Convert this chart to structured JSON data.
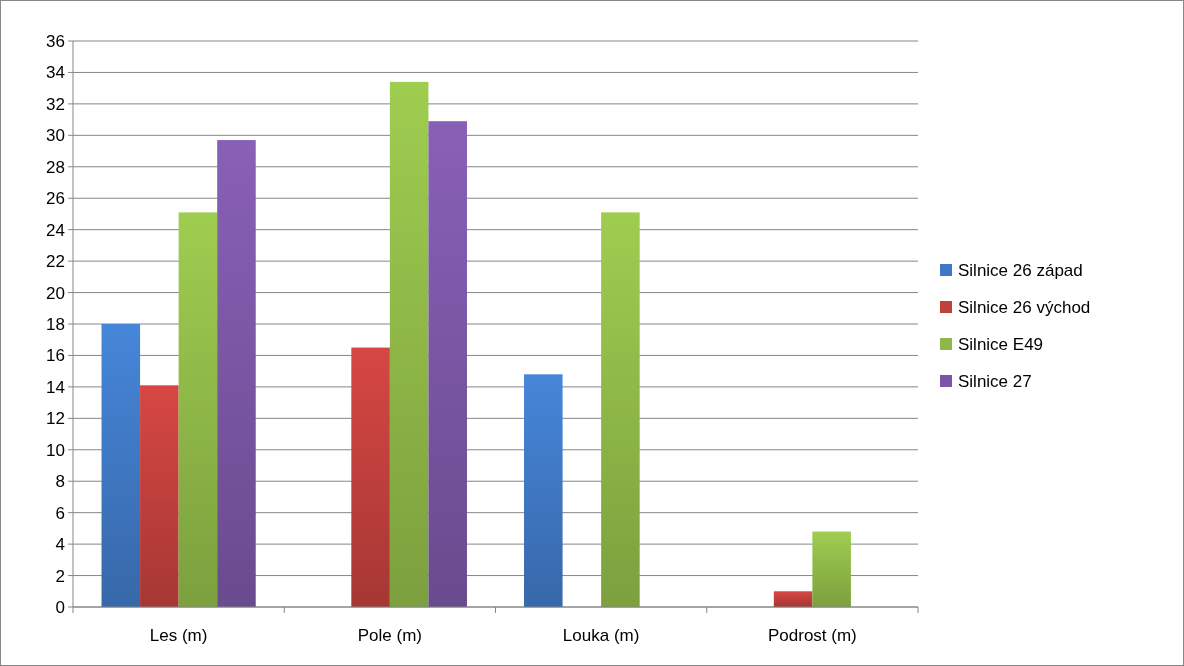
{
  "chart_data": {
    "type": "bar",
    "categories": [
      "Les (m)",
      "Pole (m)",
      "Louka (m)",
      "Podrost (m)"
    ],
    "series": [
      {
        "name": "Silnice 26 západ",
        "color": "#3f78c3",
        "values": [
          18,
          null,
          14.8,
          null
        ]
      },
      {
        "name": "Silnice 26 východ",
        "color": "#c0403c",
        "values": [
          14.1,
          16.5,
          null,
          1.0
        ]
      },
      {
        "name": "Silnice E49",
        "color": "#8fb848",
        "values": [
          25.1,
          33.4,
          25.1,
          4.8
        ]
      },
      {
        "name": "Silnice 27",
        "color": "#7a56a4",
        "values": [
          29.7,
          30.9,
          null,
          null
        ]
      }
    ],
    "ylim": [
      0,
      36
    ],
    "yticks": [
      0,
      2,
      4,
      6,
      8,
      10,
      12,
      14,
      16,
      18,
      20,
      22,
      24,
      26,
      28,
      30,
      32,
      34,
      36
    ],
    "grid": "y",
    "legend": "right"
  }
}
